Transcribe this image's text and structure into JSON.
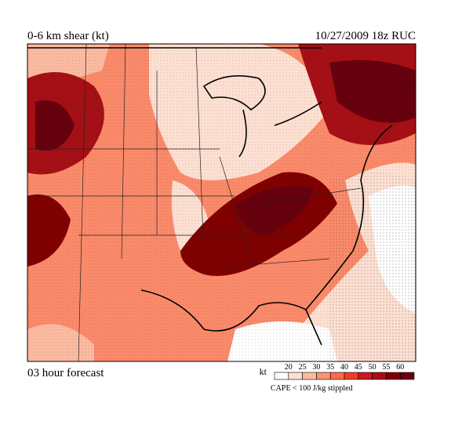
{
  "header": {
    "title": "0-6 km shear (kt)",
    "valid": "10/27/2009  18z  RUC"
  },
  "footer": {
    "forecast": "03 hour forecast",
    "note": "CAPE < 100 J/kg stippled"
  },
  "legend": {
    "unit": "kt",
    "ticks": [
      20,
      25,
      30,
      35,
      40,
      45,
      50,
      55,
      60
    ],
    "colors": [
      "#ffffff",
      "#fde0d2",
      "#fcbba1",
      "#fc9272",
      "#fb6a4a",
      "#ef3b2c",
      "#cb181d",
      "#a50f15",
      "#800000",
      "#67000d"
    ]
  }
}
